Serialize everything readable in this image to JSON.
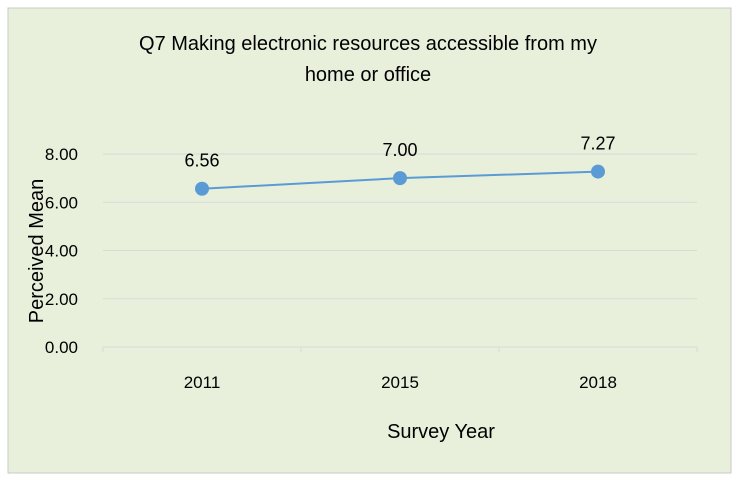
{
  "colors": {
    "background": "#e8f0dc",
    "border": "#c8c8c8",
    "gridline": "#d9d9d9",
    "series": "#5b9bd5",
    "text": "#000000"
  },
  "chart_data": {
    "type": "line",
    "title_lines": [
      "Q7  Making electronic resources accessible from my",
      "home or office"
    ],
    "xlabel": "Survey Year",
    "ylabel": "Perceived Mean",
    "categories": [
      "2011",
      "2015",
      "2018"
    ],
    "y_ticks": [
      "0.00",
      "2.00",
      "4.00",
      "6.00",
      "8.00"
    ],
    "ylim": [
      0,
      8
    ],
    "grid": true,
    "legend": "none",
    "series": [
      {
        "values": [
          6.56,
          7.0,
          7.27
        ],
        "data_labels": [
          "6.56",
          "7.00",
          "7.27"
        ]
      }
    ]
  }
}
